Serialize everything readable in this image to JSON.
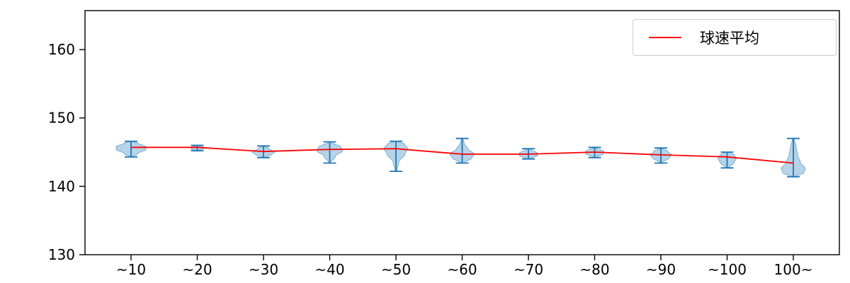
{
  "chart_data": {
    "type": "violin",
    "title": "",
    "xlabel": "",
    "ylabel": "",
    "categories": [
      "~10",
      "~20",
      "~30",
      "~40",
      "~50",
      "~60",
      "~70",
      "~80",
      "~90",
      "~100",
      "100~"
    ],
    "yticks": [
      130,
      140,
      150,
      160
    ],
    "ylim": [
      130,
      165.7
    ],
    "grid": false,
    "legend": {
      "label": "球速平均",
      "position": "upper right",
      "color": "#ff0000"
    },
    "series": [
      {
        "name": "球速平均",
        "color": "#ff0000",
        "values": [
          145.7,
          145.7,
          145.1,
          145.4,
          145.5,
          144.7,
          144.7,
          145.0,
          144.6,
          144.3,
          143.4
        ]
      }
    ],
    "violins": [
      {
        "category": "~10",
        "min": 144.3,
        "max": 146.6,
        "profile": [
          [
            144.3,
            1
          ],
          [
            144.8,
            10
          ],
          [
            145.4,
            21
          ],
          [
            145.8,
            21
          ],
          [
            146.3,
            10
          ],
          [
            146.6,
            1
          ]
        ]
      },
      {
        "category": "~20",
        "min": 145.2,
        "max": 146.0,
        "profile": [
          [
            145.2,
            1
          ],
          [
            145.5,
            9
          ],
          [
            145.7,
            10
          ],
          [
            146.0,
            1
          ]
        ]
      },
      {
        "category": "~30",
        "min": 144.2,
        "max": 145.9,
        "profile": [
          [
            144.2,
            2
          ],
          [
            144.7,
            12
          ],
          [
            145.0,
            16
          ],
          [
            145.5,
            8
          ],
          [
            145.9,
            1
          ]
        ]
      },
      {
        "category": "~40",
        "min": 143.4,
        "max": 146.5,
        "profile": [
          [
            143.4,
            1
          ],
          [
            144.4,
            8
          ],
          [
            145.2,
            18
          ],
          [
            145.7,
            16
          ],
          [
            146.5,
            2
          ]
        ]
      },
      {
        "category": "~50",
        "min": 142.2,
        "max": 146.6,
        "profile": [
          [
            142.2,
            1
          ],
          [
            143.5,
            4
          ],
          [
            144.8,
            13
          ],
          [
            145.5,
            17
          ],
          [
            146.2,
            12
          ],
          [
            146.6,
            2
          ]
        ]
      },
      {
        "category": "~60",
        "min": 143.4,
        "max": 147.0,
        "profile": [
          [
            143.4,
            3
          ],
          [
            144.2,
            14
          ],
          [
            144.7,
            17
          ],
          [
            145.5,
            8
          ],
          [
            146.2,
            3
          ],
          [
            147.0,
            1
          ]
        ]
      },
      {
        "category": "~70",
        "min": 144.0,
        "max": 145.5,
        "profile": [
          [
            144.0,
            2
          ],
          [
            144.5,
            13
          ],
          [
            144.8,
            13
          ],
          [
            145.5,
            2
          ]
        ]
      },
      {
        "category": "~80",
        "min": 144.2,
        "max": 145.7,
        "profile": [
          [
            144.2,
            2
          ],
          [
            144.8,
            13
          ],
          [
            145.1,
            13
          ],
          [
            145.7,
            1
          ]
        ]
      },
      {
        "category": "~90",
        "min": 143.4,
        "max": 145.6,
        "profile": [
          [
            143.4,
            1
          ],
          [
            144.2,
            12
          ],
          [
            144.6,
            15
          ],
          [
            145.1,
            10
          ],
          [
            145.6,
            1
          ]
        ]
      },
      {
        "category": "~100",
        "min": 142.7,
        "max": 145.0,
        "profile": [
          [
            142.7,
            2
          ],
          [
            143.5,
            10
          ],
          [
            144.1,
            13
          ],
          [
            144.6,
            10
          ],
          [
            145.0,
            2
          ]
        ]
      },
      {
        "category": "100~",
        "min": 141.4,
        "max": 147.0,
        "profile": [
          [
            141.4,
            3
          ],
          [
            142.0,
            15
          ],
          [
            142.6,
            17
          ],
          [
            143.5,
            10
          ],
          [
            144.6,
            6
          ],
          [
            145.8,
            4
          ],
          [
            147.0,
            1
          ]
        ]
      }
    ],
    "colors": {
      "violin_fill": "rgba(31,119,180,0.32)",
      "violin_edge": "rgba(31,119,180,0.5)",
      "errorbar": "#1f77b4",
      "mean_line": "#ff0000",
      "axis": "#000000"
    }
  }
}
